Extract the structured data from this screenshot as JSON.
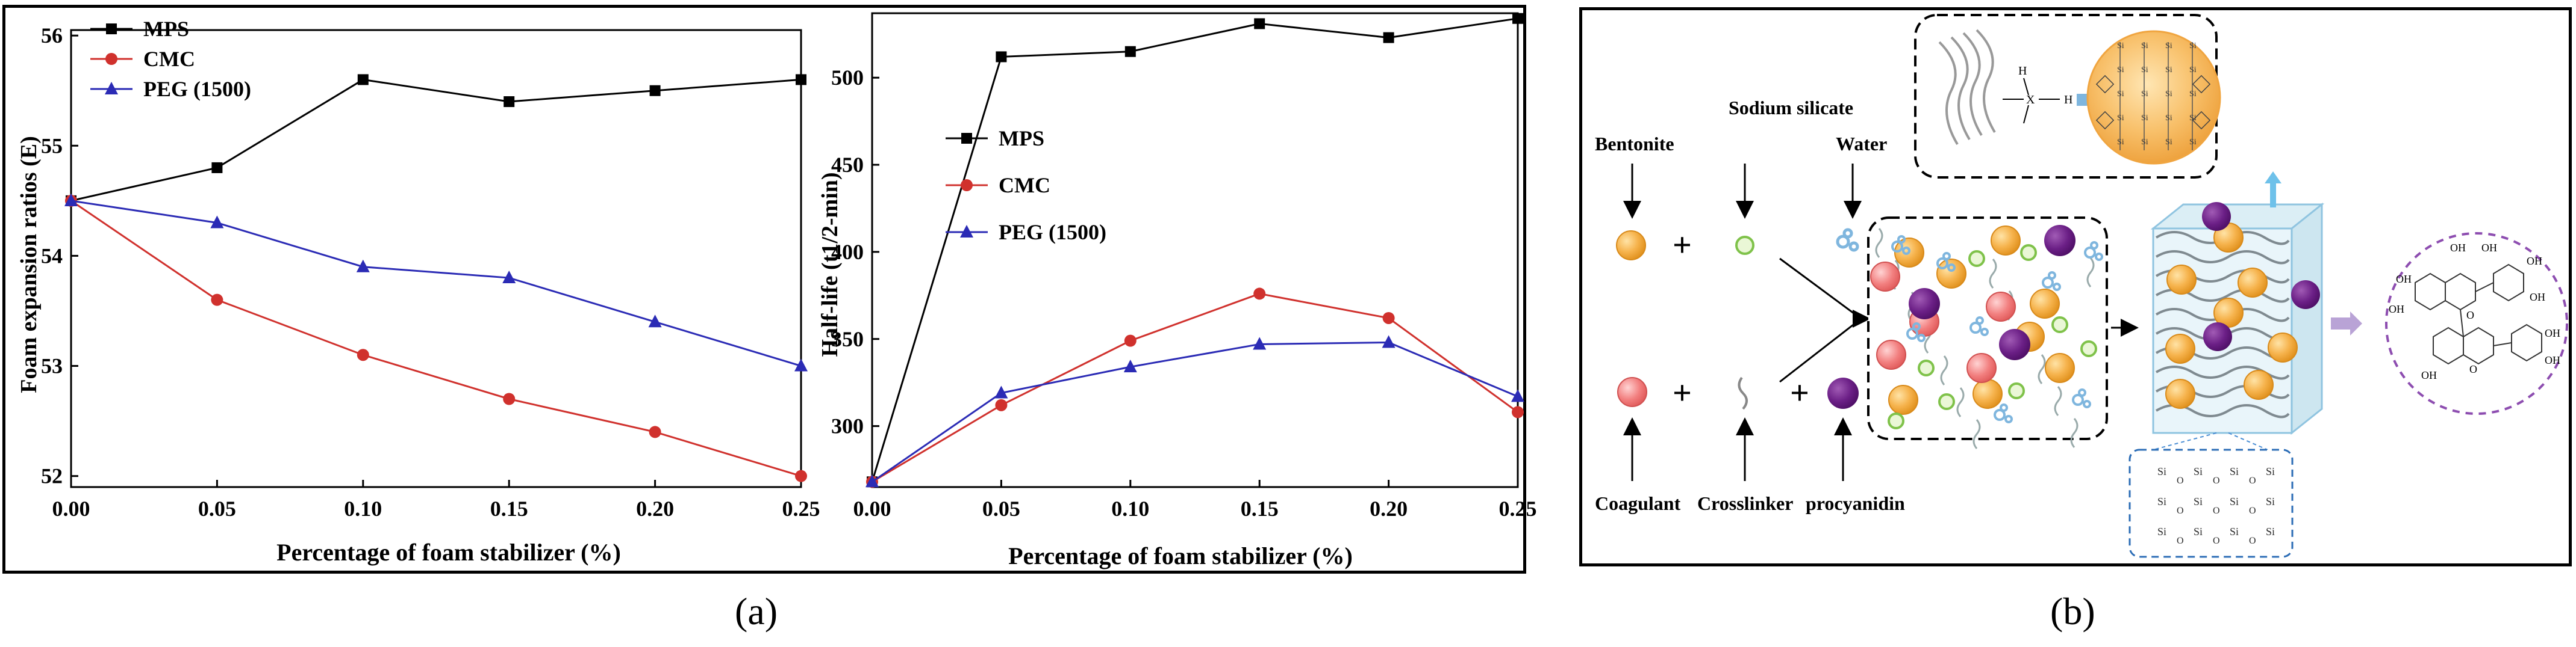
{
  "chart_data": [
    {
      "type": "line",
      "xlabel": "Percentage of foam stabilizer (%)",
      "ylabel": "Foam expansion ratios (E)",
      "x": [
        0.0,
        0.05,
        0.1,
        0.15,
        0.2,
        0.25
      ],
      "xticks": [
        "0.00",
        "0.05",
        "0.10",
        "0.15",
        "0.20",
        "0.25"
      ],
      "xlim": [
        0.0,
        0.25
      ],
      "ylim": [
        51.9,
        56.05
      ],
      "yticks": [
        "52",
        "53",
        "54",
        "55",
        "56"
      ],
      "legend_position": "top-left",
      "series": [
        {
          "name": "MPS",
          "color": "#000000",
          "marker": "square",
          "values": [
            54.5,
            54.8,
            55.6,
            55.4,
            55.5,
            55.6
          ]
        },
        {
          "name": "CMC",
          "color": "#d0312d",
          "marker": "circle",
          "values": [
            54.5,
            53.6,
            53.1,
            52.7,
            52.4,
            52.0
          ]
        },
        {
          "name": "PEG (1500)",
          "color": "#2b2bb5",
          "marker": "triangle",
          "values": [
            54.5,
            54.3,
            53.9,
            53.8,
            53.4,
            53.0
          ]
        }
      ]
    },
    {
      "type": "line",
      "xlabel": "Percentage of foam stabilizer (%)",
      "ylabel": "Half-life (t1/2-min)",
      "x": [
        0.0,
        0.05,
        0.1,
        0.15,
        0.2,
        0.25
      ],
      "xticks": [
        "0.00",
        "0.05",
        "0.10",
        "0.15",
        "0.20",
        "0.25"
      ],
      "xlim": [
        0.0,
        0.25
      ],
      "ylim": [
        265,
        537
      ],
      "yticks": [
        "300",
        "350",
        "400",
        "450",
        "500"
      ],
      "legend_position": "center-left",
      "series": [
        {
          "name": "MPS",
          "color": "#000000",
          "marker": "square",
          "values": [
            268,
            512,
            515,
            531,
            523,
            534
          ]
        },
        {
          "name": "CMC",
          "color": "#d0312d",
          "marker": "circle",
          "values": [
            268,
            312,
            349,
            376,
            362,
            308
          ]
        },
        {
          "name": "PEG (1500)",
          "color": "#2b2bb5",
          "marker": "triangle",
          "values": [
            268,
            319,
            334,
            347,
            348,
            317
          ]
        }
      ]
    }
  ],
  "diagram": {
    "reagents": {
      "bentonite": "Bentonite",
      "sodium_silicate": "Sodium silicate",
      "water": "Water",
      "coagulant": "Coagulant",
      "crosslinker": "Crosslinker",
      "procyanidin": "procyanidin"
    },
    "plus_sign": "+",
    "chem": {
      "h": "H",
      "x": "X",
      "si": "Si",
      "o": "O",
      "oh": "OH"
    }
  },
  "captions": {
    "a": "(a)",
    "b": "(b)"
  }
}
